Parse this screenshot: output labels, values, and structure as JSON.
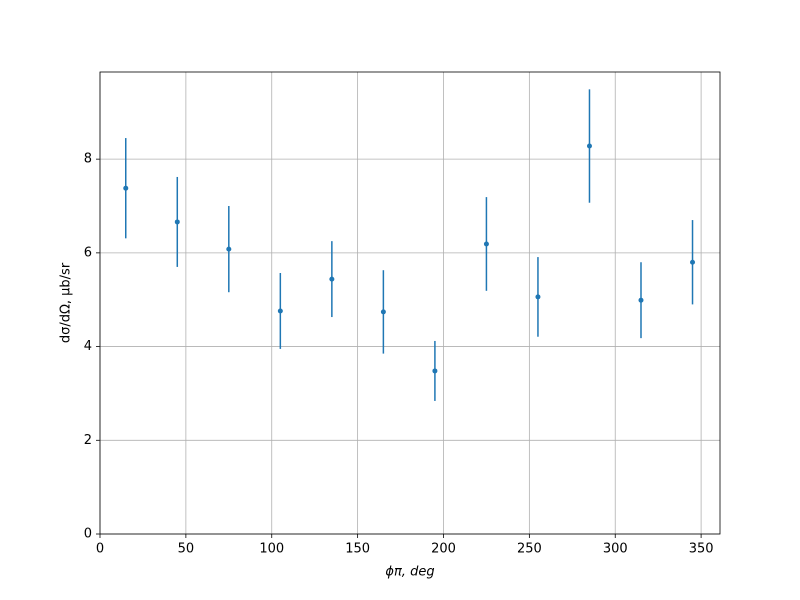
{
  "chart_data": {
    "type": "errorbar",
    "x_label": "ϕπ, deg",
    "y_label": "dσ/dΩ, μb/sr",
    "series": [
      {
        "color": "#1f77b4",
        "x": [
          15,
          45,
          75,
          105,
          135,
          165,
          195,
          225,
          255,
          285,
          315,
          345
        ],
        "values": [
          7.38,
          6.66,
          6.08,
          4.76,
          5.44,
          4.74,
          3.48,
          6.19,
          5.06,
          8.28,
          4.99,
          5.8
        ],
        "errors": [
          1.07,
          0.96,
          0.92,
          0.81,
          0.81,
          0.89,
          0.64,
          1.0,
          0.85,
          1.21,
          0.81,
          0.9
        ]
      }
    ],
    "xlim": [
      0,
      361
    ],
    "xticks": [
      0,
      50,
      100,
      150,
      200,
      250,
      300,
      350
    ],
    "ylim": [
      0,
      9.86
    ],
    "yticks": [
      0,
      2,
      4,
      6,
      8
    ],
    "grid": true
  }
}
